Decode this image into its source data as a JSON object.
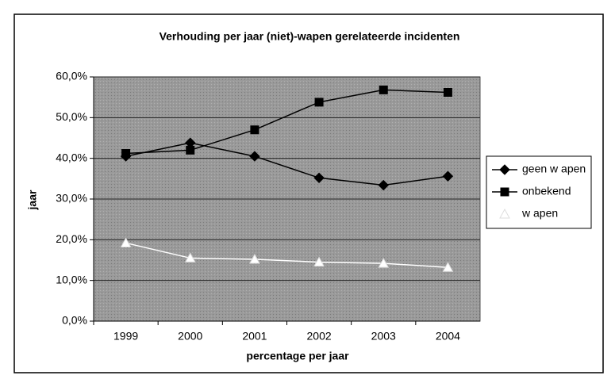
{
  "chart_data": {
    "type": "line",
    "title": "Verhouding per jaar (niet)-wapen gerelateerde incidenten",
    "x_label": "percentage per jaar",
    "y_label": "jaar",
    "categories": [
      "1999",
      "2000",
      "2001",
      "2002",
      "2003",
      "2004"
    ],
    "series": [
      {
        "name": "geen w apen",
        "color": "#000000",
        "marker": "diamond",
        "values": [
          40.5,
          43.8,
          40.5,
          35.2,
          33.4,
          35.6
        ]
      },
      {
        "name": "onbekend",
        "color": "#000000",
        "marker": "square",
        "values": [
          41.2,
          42.0,
          47.0,
          53.8,
          56.8,
          56.2
        ]
      },
      {
        "name": "w apen",
        "color": "#ffffff",
        "marker": "triangle",
        "values": [
          19.2,
          15.5,
          15.2,
          14.5,
          14.2,
          13.2
        ]
      }
    ],
    "ylim": [
      0,
      60
    ],
    "yticks": [
      {
        "value": 0,
        "label": "0,0%"
      },
      {
        "value": 10,
        "label": "10,0%"
      },
      {
        "value": 20,
        "label": "20,0%"
      },
      {
        "value": 30,
        "label": "30,0%"
      },
      {
        "value": 40,
        "label": "40,0%"
      },
      {
        "value": 50,
        "label": "50,0%"
      },
      {
        "value": 60,
        "label": "60,0%"
      }
    ],
    "grid": true,
    "legend": "right"
  }
}
